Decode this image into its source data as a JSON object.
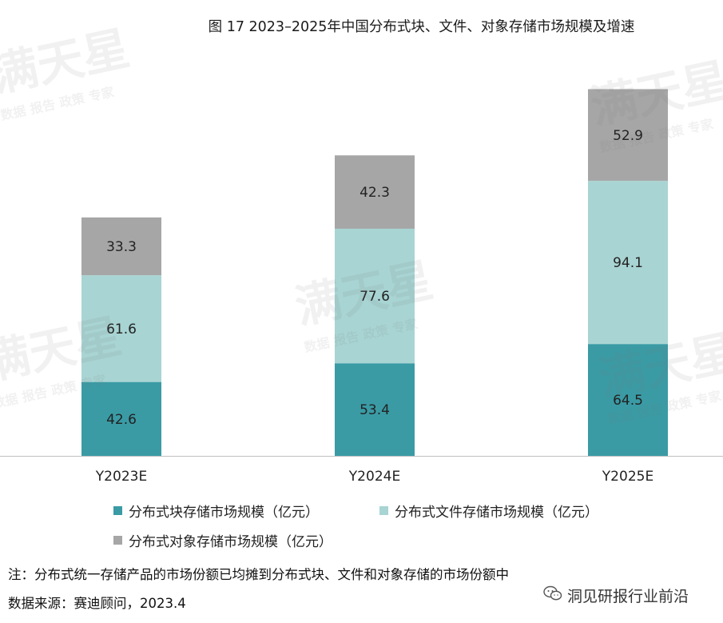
{
  "title": "图 17 2023–2025年中国分布式块、文件、对象存储市场规模及增速",
  "legend": [
    {
      "label": "分布式块存储市场规模（亿元）",
      "color": "#3a9ba5"
    },
    {
      "label": "分布式文件存储市场规模（亿元）",
      "color": "#a8d4d3"
    },
    {
      "label": "分布式对象存储市场规模（亿元）",
      "color": "#a6a6a6"
    }
  ],
  "note": "注：分布式统一存储产品的市场份额已均摊到分布式块、文件和对象存储的市场份额中",
  "source": "数据来源：赛迪顾问，2023.4",
  "brand": "洞见研报行业前沿",
  "brand_icon": "wechat-icon",
  "watermark": {
    "main": "满天星",
    "sub": "数据 报告 政策 专家"
  },
  "chart_data": {
    "type": "bar",
    "stacked": true,
    "categories": [
      "Y2023E",
      "Y2024E",
      "Y2025E"
    ],
    "series": [
      {
        "name": "分布式块存储市场规模（亿元）",
        "values": [
          42.6,
          53.4,
          64.5
        ],
        "color": "#3a9ba5"
      },
      {
        "name": "分布式文件存储市场规模（亿元）",
        "values": [
          61.6,
          77.6,
          94.1
        ],
        "color": "#a8d4d3"
      },
      {
        "name": "分布式对象存储市场规模（亿元）",
        "values": [
          33.3,
          42.3,
          52.9
        ],
        "color": "#a6a6a6"
      }
    ],
    "data_labels": true,
    "ylim": [
      0,
      226
    ],
    "grid": false,
    "legend_position": "bottom"
  }
}
